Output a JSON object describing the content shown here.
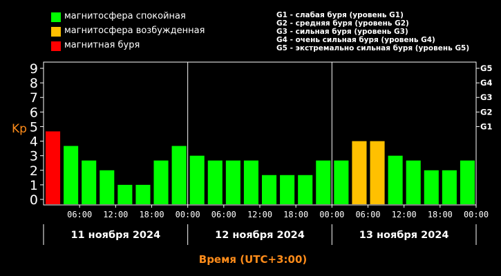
{
  "legend": [
    {
      "label": "магнитосфера спокойная",
      "color": "#00ff00"
    },
    {
      "label": "магнитосфера возбужденная",
      "color": "#ffc000"
    },
    {
      "label": "магнитная буря",
      "color": "#ff0000"
    }
  ],
  "storm_scale": [
    "G1 - слабая буря (уровень G1)",
    "G2 - средняя буря (уровень G2)",
    "G3 - сильная буря (уровень G3)",
    "G4 - очень сильная буря (уровень G4)",
    "G5 - экстремально сильная буря (уровень G5)"
  ],
  "chart_data": {
    "type": "bar",
    "ylabel": "Kp",
    "xlabel": "Время (UTC+3:00)",
    "ylim": [
      0,
      9
    ],
    "y_ticks": [
      "0",
      "1",
      "2",
      "3",
      "4",
      "5",
      "6",
      "7",
      "8",
      "9"
    ],
    "g_levels": [
      {
        "label": "G1",
        "kp": 5
      },
      {
        "label": "G2",
        "kp": 6
      },
      {
        "label": "G3",
        "kp": 7
      },
      {
        "label": "G4",
        "kp": 8
      },
      {
        "label": "G5",
        "kp": 9
      }
    ],
    "days": [
      "11 ноября 2024",
      "12 ноября 2024",
      "13 ноября 2024"
    ],
    "x_ticks": [
      "06:00",
      "12:00",
      "18:00",
      "00:00",
      "06:00",
      "12:00",
      "18:00",
      "00:00",
      "06:00",
      "12:00",
      "18:00",
      "00:00"
    ],
    "values": [
      4.67,
      3.67,
      2.67,
      2.0,
      1.0,
      1.0,
      2.67,
      3.67,
      3.0,
      2.67,
      2.67,
      2.67,
      1.67,
      1.67,
      1.67,
      2.67,
      2.67,
      4.0,
      4.0,
      3.0,
      2.67,
      2.0,
      2.0,
      2.67
    ],
    "bar_colors": [
      "#ff0000",
      "#00ff00",
      "#00ff00",
      "#00ff00",
      "#00ff00",
      "#00ff00",
      "#00ff00",
      "#00ff00",
      "#00ff00",
      "#00ff00",
      "#00ff00",
      "#00ff00",
      "#00ff00",
      "#00ff00",
      "#00ff00",
      "#00ff00",
      "#00ff00",
      "#ffc000",
      "#ffc000",
      "#00ff00",
      "#00ff00",
      "#00ff00",
      "#00ff00",
      "#00ff00"
    ],
    "colors": {
      "text": "#ffffff",
      "accent": "#ff8c1a",
      "grid": "#333333",
      "axis": "#ffffff"
    }
  }
}
